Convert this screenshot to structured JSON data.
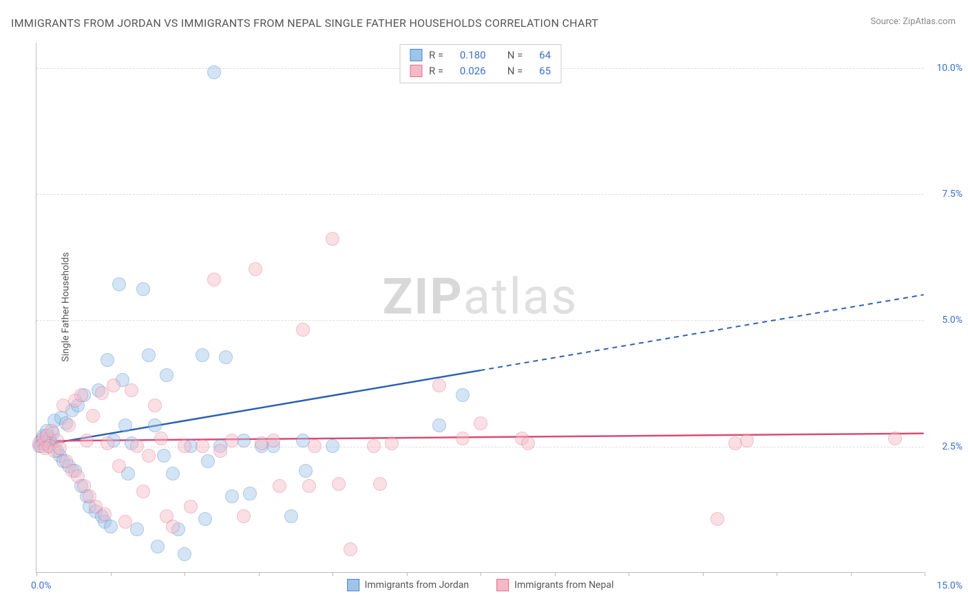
{
  "title": "IMMIGRANTS FROM JORDAN VS IMMIGRANTS FROM NEPAL SINGLE FATHER HOUSEHOLDS CORRELATION CHART",
  "source_prefix": "Source: ",
  "source_name": "ZipAtlas.com",
  "ylabel": "Single Father Households",
  "watermark_bold": "ZIP",
  "watermark_light": "atlas",
  "chart": {
    "type": "scatter",
    "xlim": [
      0,
      15
    ],
    "ylim": [
      0,
      10.5
    ],
    "x_min_label": "0.0%",
    "x_max_label": "15.0%",
    "x_ticks": [
      0,
      1.25,
      2.5,
      3.75,
      5.0,
      6.25,
      7.5,
      8.75,
      10.0,
      11.25,
      12.5,
      13.75,
      15.0
    ],
    "y_gridlines": [
      2.5,
      5.0,
      7.5,
      10.0
    ],
    "y_tick_labels": [
      "2.5%",
      "5.0%",
      "7.5%",
      "10.0%"
    ],
    "background_color": "#ffffff",
    "grid_color": "#dddddd",
    "axis_color": "#bbbbbb",
    "tick_label_color": "#3b6fc9",
    "marker_radius": 10,
    "marker_opacity": 0.45,
    "marker_stroke_width": 1.2,
    "series": [
      {
        "name": "Immigrants from Jordan",
        "fill": "#9ec4ea",
        "stroke": "#4a86c7",
        "line_color": "#2e5fb3",
        "R": "0.180",
        "N": "64",
        "trend": {
          "x1": 0,
          "y1": 2.5,
          "x2_solid": 7.5,
          "y2_solid": 4.0,
          "x2": 15,
          "y2": 5.5
        },
        "points": [
          [
            0.05,
            2.5
          ],
          [
            0.08,
            2.6
          ],
          [
            0.1,
            2.55
          ],
          [
            0.12,
            2.7
          ],
          [
            0.15,
            2.6
          ],
          [
            0.18,
            2.8
          ],
          [
            0.2,
            2.5
          ],
          [
            0.22,
            2.65
          ],
          [
            0.25,
            2.55
          ],
          [
            0.28,
            2.75
          ],
          [
            0.3,
            3.0
          ],
          [
            0.35,
            2.4
          ],
          [
            0.4,
            2.3
          ],
          [
            0.42,
            3.05
          ],
          [
            0.45,
            2.2
          ],
          [
            0.5,
            2.95
          ],
          [
            0.55,
            2.1
          ],
          [
            0.6,
            3.2
          ],
          [
            0.65,
            2.0
          ],
          [
            0.7,
            3.3
          ],
          [
            0.75,
            1.7
          ],
          [
            0.8,
            3.5
          ],
          [
            0.85,
            1.5
          ],
          [
            0.9,
            1.3
          ],
          [
            1.0,
            1.2
          ],
          [
            1.05,
            3.6
          ],
          [
            1.1,
            1.1
          ],
          [
            1.15,
            1.0
          ],
          [
            1.2,
            4.2
          ],
          [
            1.25,
            0.9
          ],
          [
            1.3,
            2.6
          ],
          [
            1.4,
            5.7
          ],
          [
            1.45,
            3.8
          ],
          [
            1.5,
            2.9
          ],
          [
            1.55,
            1.95
          ],
          [
            1.6,
            2.55
          ],
          [
            1.7,
            0.85
          ],
          [
            1.8,
            5.6
          ],
          [
            1.9,
            4.3
          ],
          [
            2.0,
            2.9
          ],
          [
            2.05,
            0.5
          ],
          [
            2.15,
            2.3
          ],
          [
            2.2,
            3.9
          ],
          [
            2.3,
            1.95
          ],
          [
            2.4,
            0.85
          ],
          [
            2.5,
            0.35
          ],
          [
            2.6,
            2.5
          ],
          [
            2.8,
            4.3
          ],
          [
            2.85,
            1.05
          ],
          [
            2.9,
            2.2
          ],
          [
            3.0,
            9.9
          ],
          [
            3.1,
            2.5
          ],
          [
            3.2,
            4.25
          ],
          [
            3.3,
            1.5
          ],
          [
            3.5,
            2.6
          ],
          [
            3.6,
            1.55
          ],
          [
            3.8,
            2.5
          ],
          [
            4.0,
            2.5
          ],
          [
            4.3,
            1.1
          ],
          [
            4.5,
            2.6
          ],
          [
            4.55,
            2.0
          ],
          [
            5.0,
            2.5
          ],
          [
            6.8,
            2.9
          ],
          [
            7.2,
            3.5
          ]
        ]
      },
      {
        "name": "Immigrants from Nepal",
        "fill": "#f4b9c7",
        "stroke": "#df6f8e",
        "line_color": "#d84a74",
        "R": "0.026",
        "N": "65",
        "trend": {
          "x1": 0,
          "y1": 2.6,
          "x2_solid": 15,
          "y2_solid": 2.75,
          "x2": 15,
          "y2": 2.75
        },
        "points": [
          [
            0.05,
            2.55
          ],
          [
            0.08,
            2.5
          ],
          [
            0.12,
            2.65
          ],
          [
            0.15,
            2.45
          ],
          [
            0.18,
            2.7
          ],
          [
            0.22,
            2.5
          ],
          [
            0.25,
            2.8
          ],
          [
            0.3,
            2.4
          ],
          [
            0.35,
            2.6
          ],
          [
            0.4,
            2.45
          ],
          [
            0.45,
            3.3
          ],
          [
            0.5,
            2.2
          ],
          [
            0.55,
            2.9
          ],
          [
            0.6,
            2.0
          ],
          [
            0.65,
            3.4
          ],
          [
            0.7,
            1.9
          ],
          [
            0.75,
            3.5
          ],
          [
            0.8,
            1.7
          ],
          [
            0.85,
            2.6
          ],
          [
            0.9,
            1.5
          ],
          [
            0.95,
            3.1
          ],
          [
            1.0,
            1.3
          ],
          [
            1.1,
            3.55
          ],
          [
            1.15,
            1.15
          ],
          [
            1.2,
            2.55
          ],
          [
            1.3,
            3.7
          ],
          [
            1.4,
            2.1
          ],
          [
            1.5,
            1.0
          ],
          [
            1.6,
            3.6
          ],
          [
            1.7,
            2.5
          ],
          [
            1.8,
            1.6
          ],
          [
            1.9,
            2.3
          ],
          [
            2.0,
            3.3
          ],
          [
            2.1,
            2.65
          ],
          [
            2.2,
            1.1
          ],
          [
            2.3,
            0.9
          ],
          [
            2.5,
            2.5
          ],
          [
            2.6,
            1.3
          ],
          [
            2.8,
            2.5
          ],
          [
            3.0,
            5.8
          ],
          [
            3.1,
            2.4
          ],
          [
            3.3,
            2.6
          ],
          [
            3.5,
            1.1
          ],
          [
            3.7,
            6.0
          ],
          [
            3.8,
            2.55
          ],
          [
            4.0,
            2.6
          ],
          [
            4.1,
            1.7
          ],
          [
            4.5,
            4.8
          ],
          [
            4.6,
            1.7
          ],
          [
            4.7,
            2.5
          ],
          [
            5.0,
            6.6
          ],
          [
            5.1,
            1.75
          ],
          [
            5.3,
            0.45
          ],
          [
            5.7,
            2.5
          ],
          [
            5.8,
            1.75
          ],
          [
            6.0,
            2.55
          ],
          [
            6.8,
            3.7
          ],
          [
            7.2,
            2.65
          ],
          [
            7.5,
            2.95
          ],
          [
            8.2,
            2.65
          ],
          [
            8.3,
            2.55
          ],
          [
            11.5,
            1.05
          ],
          [
            11.8,
            2.55
          ],
          [
            12.0,
            2.6
          ],
          [
            14.5,
            2.65
          ]
        ]
      }
    ]
  },
  "stats_labels": {
    "R": "R",
    "N": "N",
    "eq": "="
  },
  "legend_bottom": [
    {
      "label": "Immigrants from Jordan",
      "fill": "#9ec4ea",
      "stroke": "#4a86c7"
    },
    {
      "label": "Immigrants from Nepal",
      "fill": "#f4b9c7",
      "stroke": "#df6f8e"
    }
  ]
}
